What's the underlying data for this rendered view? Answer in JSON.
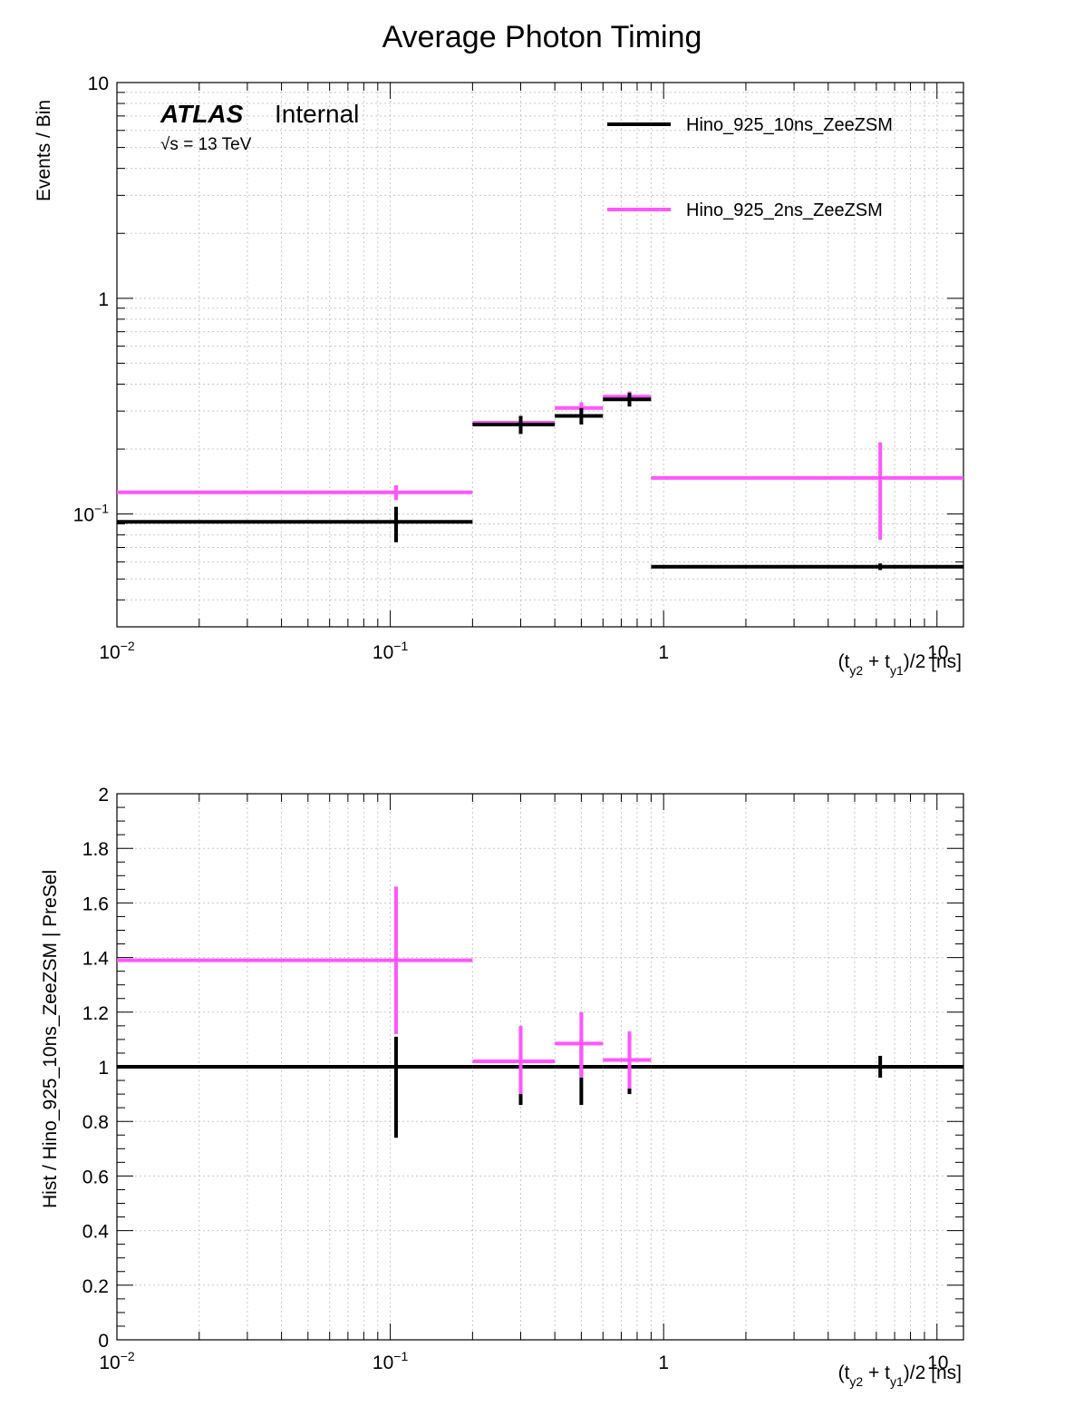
{
  "title": "Average Photon Timing",
  "atlas": {
    "label": "ATLAS",
    "status": "Internal",
    "energy": "√s = 13 TeV"
  },
  "legend": [
    {
      "name": "Hino_925_10ns_ZeeZSM",
      "color": "#000000"
    },
    {
      "name": "Hino_925_2ns_ZeeZSM",
      "color": "#ff55ff"
    }
  ],
  "colors": {
    "series_a": "#000000",
    "series_b": "#ff55ff",
    "grid": "#c8c8c8"
  },
  "chart_data": [
    {
      "type": "histogram",
      "panel": "top",
      "xlabel": "(t_y2 + t_y1)/2 [ns]",
      "ylabel": "Events / Bin",
      "xscale": "log",
      "yscale": "log",
      "xlim": [
        0.01,
        12.5
      ],
      "ylim": [
        0.03,
        10
      ],
      "grid": true,
      "legend_position": "top-right",
      "x_tick_labels": [
        "10^-2",
        "10^-1",
        "1",
        "10"
      ],
      "y_tick_labels": [
        "10^-1",
        "1",
        "10"
      ],
      "bins": [
        [
          0.01,
          0.2
        ],
        [
          0.2,
          0.4
        ],
        [
          0.4,
          0.6
        ],
        [
          0.6,
          0.9
        ],
        [
          0.9,
          12.5
        ]
      ],
      "series": [
        {
          "name": "Hino_925_10ns_ZeeZSM",
          "x": [
            0.105,
            0.3,
            0.5,
            0.75,
            6.2
          ],
          "values": [
            0.092,
            0.26,
            0.285,
            0.34,
            0.057
          ],
          "err_low": [
            0.074,
            0.235,
            0.26,
            0.315,
            0.055
          ],
          "err_high": [
            0.108,
            0.285,
            0.31,
            0.365,
            0.059
          ]
        },
        {
          "name": "Hino_925_2ns_ZeeZSM",
          "x": [
            0.105,
            0.3,
            0.5,
            0.75,
            6.2
          ],
          "values": [
            0.126,
            0.265,
            0.31,
            0.35,
            0.147
          ],
          "err_low": [
            0.116,
            0.25,
            0.29,
            0.33,
            0.076
          ],
          "err_high": [
            0.136,
            0.28,
            0.33,
            0.37,
            0.215
          ]
        }
      ]
    },
    {
      "type": "histogram",
      "panel": "bottom",
      "xlabel": "(t_y2 + t_y1)/2 [ns]",
      "ylabel": "Hist / Hino_925_10ns_ZeeZSM | PreSel",
      "xscale": "log",
      "xlim": [
        0.01,
        12.5
      ],
      "ylim": [
        0,
        2
      ],
      "grid": true,
      "x_tick_labels": [
        "10^-2",
        "10^-1",
        "1",
        "10"
      ],
      "y_tick_labels": [
        "0",
        "0.2",
        "0.4",
        "0.6",
        "0.8",
        "1",
        "1.2",
        "1.4",
        "1.6",
        "1.8",
        "2"
      ],
      "bins": [
        [
          0.01,
          0.2
        ],
        [
          0.2,
          0.4
        ],
        [
          0.4,
          0.6
        ],
        [
          0.6,
          0.9
        ],
        [
          0.9,
          12.5
        ]
      ],
      "series": [
        {
          "name": "Hino_925_10ns_ZeeZSM",
          "x": [
            0.105,
            0.3,
            0.5,
            0.75,
            6.2
          ],
          "values": [
            1,
            1,
            1,
            1,
            1
          ],
          "err_low": [
            0.74,
            0.86,
            0.86,
            0.9,
            0.96
          ],
          "err_high": [
            1.11,
            1.14,
            1.1,
            1.03,
            1.04
          ]
        },
        {
          "name": "Hino_925_2ns_ZeeZSM",
          "x": [
            0.105,
            0.3,
            0.5,
            0.75
          ],
          "values": [
            1.39,
            1.02,
            1.085,
            1.025
          ],
          "err_low": [
            1.12,
            0.9,
            0.96,
            0.92
          ],
          "err_high": [
            1.66,
            1.15,
            1.2,
            1.13
          ]
        }
      ]
    }
  ]
}
